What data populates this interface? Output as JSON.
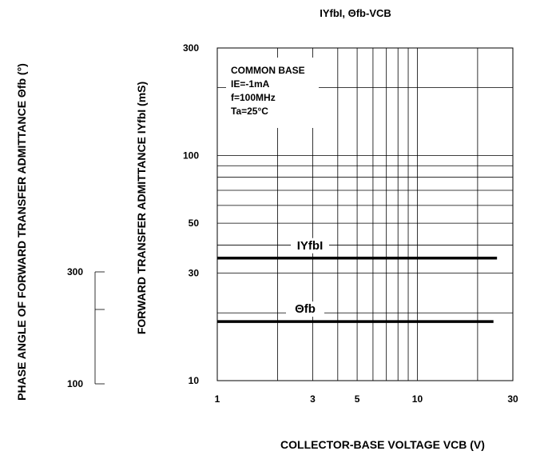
{
  "chart_data": {
    "type": "line",
    "title": "IYfbI, Θfb-VCB",
    "xlabel": "COLLECTOR-BASE VOLTAGE VCB (V)",
    "ylabel": "FORWARD TRANSFER ADMITTANCE IYfbI (mS)",
    "ylabel2": "PHASE ANGLE OF FORWARD TRANSFER ADMITTANCE Θfb (°)",
    "x_scale": "log",
    "y_scale": "log",
    "xlim": [
      1,
      30
    ],
    "ylim": [
      10,
      300
    ],
    "y2_ticks": [
      "300",
      "100"
    ],
    "x_ticks": [
      {
        "value": 1,
        "label": "1"
      },
      {
        "value": 3,
        "label": "3"
      },
      {
        "value": 5,
        "label": "5"
      },
      {
        "value": 10,
        "label": "10"
      },
      {
        "value": 30,
        "label": "30"
      }
    ],
    "y_ticks": [
      {
        "value": 300,
        "label": "300"
      },
      {
        "value": 100,
        "label": "100"
      },
      {
        "value": 50,
        "label": "50"
      },
      {
        "value": 30,
        "label": "30"
      },
      {
        "value": 10,
        "label": "10"
      }
    ],
    "grid": true,
    "conditions": [
      "COMMON BASE",
      "IE=-1mA",
      "f=100MHz",
      "Ta=25°C"
    ],
    "series": [
      {
        "name": "IYfbI",
        "x": [
          1,
          25
        ],
        "y": [
          35,
          35
        ]
      },
      {
        "name": "Θfb",
        "x": [
          1,
          24
        ],
        "y": [
          18.3,
          18.3
        ]
      }
    ]
  }
}
